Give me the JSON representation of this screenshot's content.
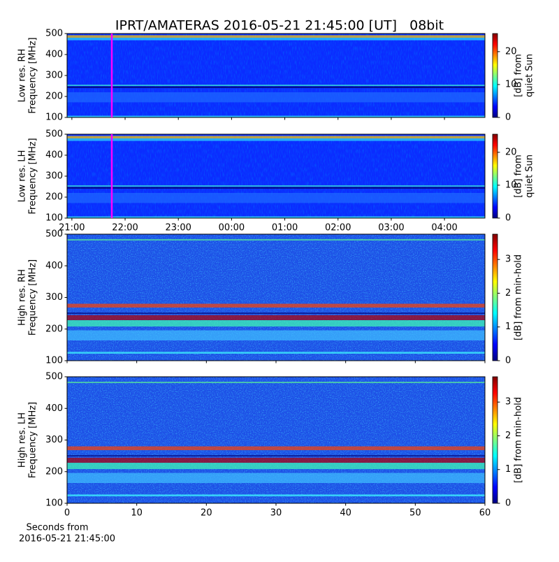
{
  "chart_data": [
    {
      "type": "heatmap",
      "title": "IPRT/AMATERAS 2016-05-21 21:45:00 [UT]   08bit",
      "ylabel": [
        "Low res. RH",
        "Frequency [MHz]"
      ],
      "ylim": [
        100,
        500
      ],
      "yticks": [
        100,
        200,
        300,
        400,
        500
      ],
      "xlim": [
        20.91,
        28.76
      ],
      "xticks": [
        21,
        22,
        23,
        24,
        25,
        26,
        27,
        28
      ],
      "xticklabels": false,
      "marker": {
        "x": 21.75,
        "color": "#ff00ff"
      },
      "colorbar": {
        "label": [
          "[dB] from",
          "quiet Sun"
        ],
        "lim": [
          0,
          25.5
        ],
        "ticks": [
          0,
          10,
          20
        ],
        "colormap": "jet"
      }
    },
    {
      "type": "heatmap",
      "ylabel": [
        "Low res. LH",
        "Frequency [MHz]"
      ],
      "ylim": [
        100,
        500
      ],
      "yticks": [
        100,
        200,
        300,
        400,
        500
      ],
      "xlim": [
        20.91,
        28.76
      ],
      "xticks": [
        {
          "value": 21,
          "label": "21:00"
        },
        {
          "value": 22,
          "label": "22:00"
        },
        {
          "value": 23,
          "label": "23:00"
        },
        {
          "value": 24,
          "label": "00:00"
        },
        {
          "value": 25,
          "label": "01:00"
        },
        {
          "value": 26,
          "label": "02:00"
        },
        {
          "value": 27,
          "label": "03:00"
        },
        {
          "value": 28,
          "label": "04:00"
        }
      ],
      "xticklabels": true,
      "marker": {
        "x": 21.75,
        "color": "#ff00ff"
      },
      "colorbar": {
        "label": [
          "[dB] from",
          "quiet Sun"
        ],
        "lim": [
          0,
          25.5
        ],
        "ticks": [
          0,
          10,
          20
        ],
        "colormap": "jet"
      }
    },
    {
      "type": "heatmap",
      "ylabel": [
        "High res. RH",
        "Frequency [MHz]"
      ],
      "ylim": [
        100,
        500
      ],
      "yticks": [
        100,
        200,
        300,
        400,
        500
      ],
      "xlim": [
        0,
        60
      ],
      "xticks": [
        0,
        10,
        20,
        30,
        40,
        50,
        60
      ],
      "xticklabels": false,
      "colorbar": {
        "label": [
          "[dB] from min-hold"
        ],
        "lim": [
          0,
          3.75
        ],
        "ticks": [
          0,
          1,
          2,
          3
        ],
        "colormap": "jet"
      }
    },
    {
      "type": "heatmap",
      "ylabel": [
        "High res. LH",
        "Frequency [MHz]"
      ],
      "ylim": [
        100,
        500
      ],
      "yticks": [
        100,
        200,
        300,
        400,
        500
      ],
      "xlim": [
        0,
        60
      ],
      "xticks": [
        0,
        10,
        20,
        30,
        40,
        50,
        60
      ],
      "xticklabels": true,
      "xlabel": [
        "Seconds from",
        "2016-05-21 21:45:00"
      ],
      "colorbar": {
        "label": [
          "[dB] from min-hold"
        ],
        "lim": [
          0,
          3.75
        ],
        "ticks": [
          0,
          1,
          2,
          3
        ],
        "colormap": "jet"
      }
    }
  ]
}
